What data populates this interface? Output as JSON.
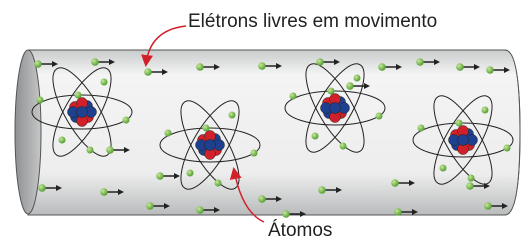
{
  "labels": {
    "electrons": "Elétrons livres em movimento",
    "atoms": "Átomos"
  }
}
